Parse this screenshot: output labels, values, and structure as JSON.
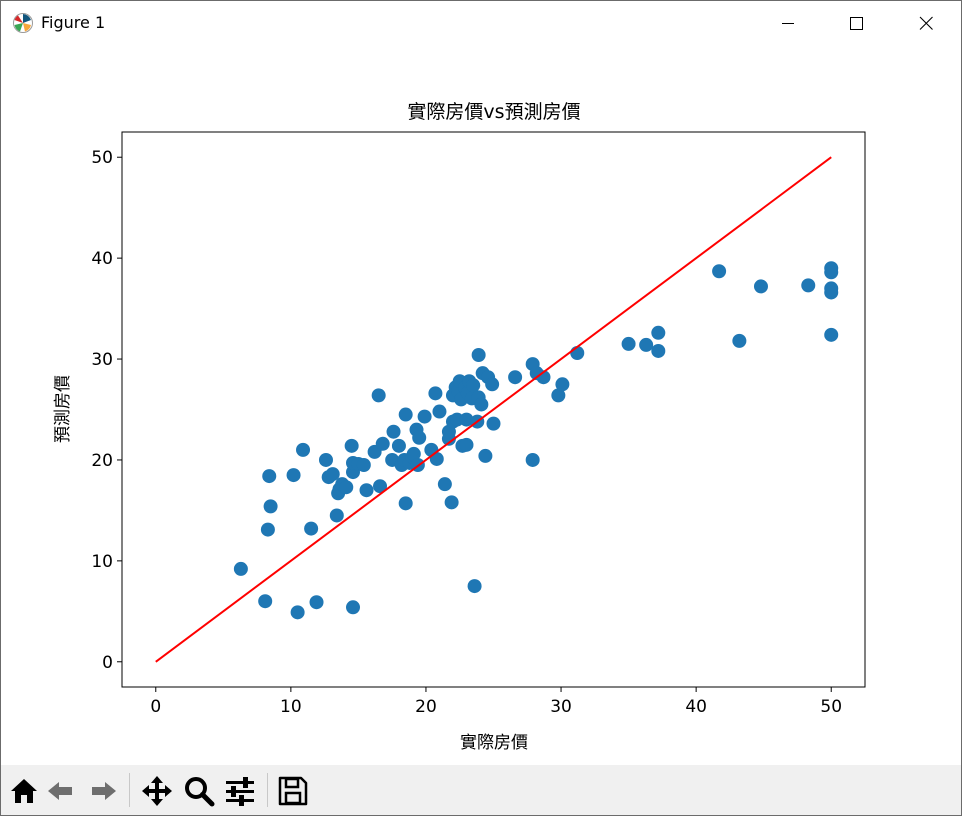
{
  "window": {
    "title": "Figure 1"
  },
  "toolbar": {
    "buttons": [
      {
        "name": "home-button",
        "icon": "home-icon"
      },
      {
        "name": "back-button",
        "icon": "arrow-left-icon"
      },
      {
        "name": "forward-button",
        "icon": "arrow-right-icon"
      },
      {
        "name": "pan-button",
        "icon": "move-icon"
      },
      {
        "name": "zoom-button",
        "icon": "magnifier-icon"
      },
      {
        "name": "subplots-button",
        "icon": "sliders-icon"
      },
      {
        "name": "save-button",
        "icon": "save-icon"
      }
    ]
  },
  "colors": {
    "points": "#1f77b4",
    "line": "#ff0000",
    "toolbar_bg": "#f0f0f0"
  },
  "chart_data": {
    "type": "scatter",
    "title": "實際房價vs預測房價",
    "xlabel": "實際房價",
    "ylabel": "預測房價",
    "xlim": [
      -2.5,
      52.5
    ],
    "ylim": [
      -2.5,
      52.5
    ],
    "xticks": [
      "0",
      "10",
      "20",
      "30",
      "40",
      "50"
    ],
    "yticks": [
      "0",
      "10",
      "20",
      "30",
      "40",
      "50"
    ],
    "grid": false,
    "series": [
      {
        "type": "scatter",
        "points": [
          [
            6.3,
            9.2
          ],
          [
            8.1,
            6.0
          ],
          [
            8.3,
            13.1
          ],
          [
            8.4,
            18.4
          ],
          [
            8.5,
            15.4
          ],
          [
            10.2,
            18.5
          ],
          [
            10.5,
            4.9
          ],
          [
            10.9,
            21.0
          ],
          [
            11.5,
            13.2
          ],
          [
            11.9,
            5.9
          ],
          [
            12.6,
            20.0
          ],
          [
            12.8,
            18.3
          ],
          [
            13.1,
            18.6
          ],
          [
            13.4,
            14.5
          ],
          [
            13.5,
            16.7
          ],
          [
            13.6,
            17.1
          ],
          [
            13.8,
            17.6
          ],
          [
            14.1,
            17.3
          ],
          [
            14.5,
            21.4
          ],
          [
            14.6,
            18.8
          ],
          [
            14.6,
            19.7
          ],
          [
            14.6,
            5.4
          ],
          [
            15.0,
            19.6
          ],
          [
            15.4,
            19.5
          ],
          [
            15.6,
            17.0
          ],
          [
            16.2,
            20.8
          ],
          [
            16.5,
            26.4
          ],
          [
            16.6,
            17.4
          ],
          [
            16.8,
            21.6
          ],
          [
            17.5,
            20.0
          ],
          [
            17.6,
            22.8
          ],
          [
            18.0,
            21.4
          ],
          [
            18.2,
            19.5
          ],
          [
            18.4,
            20.0
          ],
          [
            18.5,
            24.5
          ],
          [
            18.5,
            15.7
          ],
          [
            18.8,
            19.7
          ],
          [
            19.0,
            20.3
          ],
          [
            19.1,
            20.6
          ],
          [
            19.3,
            23.0
          ],
          [
            19.4,
            19.5
          ],
          [
            19.5,
            22.2
          ],
          [
            19.9,
            24.3
          ],
          [
            20.4,
            21.0
          ],
          [
            20.7,
            26.6
          ],
          [
            20.8,
            20.1
          ],
          [
            21.0,
            24.8
          ],
          [
            21.4,
            17.6
          ],
          [
            21.7,
            22.1
          ],
          [
            21.7,
            22.8
          ],
          [
            21.9,
            15.8
          ],
          [
            22.0,
            23.8
          ],
          [
            22.0,
            26.4
          ],
          [
            22.2,
            27.2
          ],
          [
            22.3,
            24.0
          ],
          [
            22.4,
            26.8
          ],
          [
            22.5,
            27.8
          ],
          [
            22.6,
            26.0
          ],
          [
            22.7,
            21.4
          ],
          [
            22.9,
            27.2
          ],
          [
            23.0,
            21.5
          ],
          [
            23.0,
            24.0
          ],
          [
            23.1,
            26.6
          ],
          [
            23.2,
            27.8
          ],
          [
            23.4,
            26.1
          ],
          [
            23.5,
            27.4
          ],
          [
            23.6,
            7.5
          ],
          [
            23.8,
            23.8
          ],
          [
            23.9,
            30.4
          ],
          [
            23.9,
            26.2
          ],
          [
            24.1,
            25.5
          ],
          [
            24.2,
            28.6
          ],
          [
            24.4,
            20.4
          ],
          [
            24.6,
            28.2
          ],
          [
            24.9,
            27.5
          ],
          [
            25.0,
            23.6
          ],
          [
            26.6,
            28.2
          ],
          [
            27.9,
            20.0
          ],
          [
            27.9,
            29.5
          ],
          [
            28.2,
            28.6
          ],
          [
            28.7,
            28.2
          ],
          [
            29.8,
            26.4
          ],
          [
            30.1,
            27.5
          ],
          [
            31.2,
            30.6
          ],
          [
            35.0,
            31.5
          ],
          [
            36.3,
            31.4
          ],
          [
            37.2,
            32.6
          ],
          [
            37.2,
            30.8
          ],
          [
            41.7,
            38.7
          ],
          [
            43.2,
            31.8
          ],
          [
            44.8,
            37.2
          ],
          [
            48.3,
            37.3
          ],
          [
            50.0,
            39.0
          ],
          [
            50.0,
            38.6
          ],
          [
            50.0,
            37.0
          ],
          [
            50.0,
            36.6
          ],
          [
            50.0,
            32.4
          ]
        ]
      },
      {
        "type": "line",
        "points": [
          [
            0,
            0
          ],
          [
            50,
            50
          ]
        ]
      }
    ]
  }
}
